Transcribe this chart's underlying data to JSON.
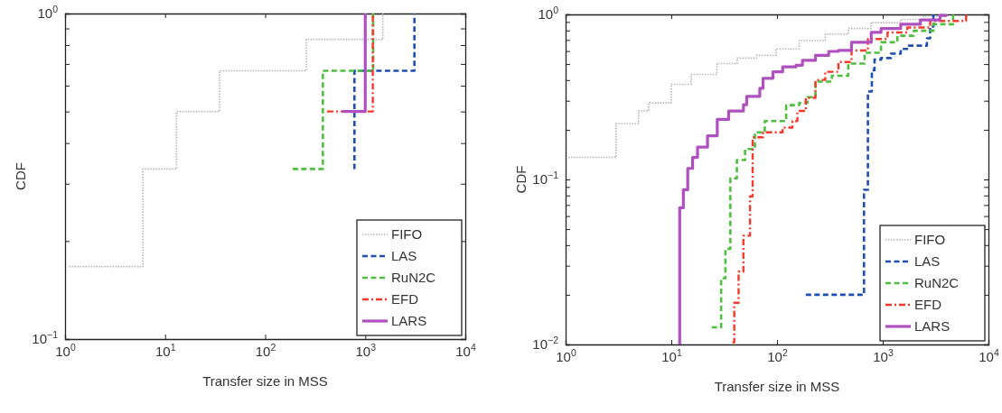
{
  "chart_data": [
    {
      "type": "step",
      "ylabel": "CDF",
      "xlabel": "Transfer size in MSS",
      "log": "xy",
      "legend": "bottom right",
      "grid": false,
      "xlim": [
        1,
        10000
      ],
      "ylim": [
        0.1,
        1
      ],
      "xticks": [
        {
          "value": 1,
          "label": "10$^{0}$"
        },
        {
          "value": 10,
          "label": "10$^{1}$"
        },
        {
          "value": 100,
          "label": "10$^{2}$"
        },
        {
          "value": 1000,
          "label": "10$^{3}$"
        },
        {
          "value": 10000,
          "label": "10$^{4}$"
        }
      ],
      "yticks": [
        {
          "value": 0.1,
          "label": "10$^{−1}$"
        },
        {
          "value": 0.2,
          "label": null
        },
        {
          "value": 0.3,
          "label": null
        },
        {
          "value": 0.4,
          "label": null
        },
        {
          "value": 0.5,
          "label": null
        },
        {
          "value": 0.6,
          "label": null
        },
        {
          "value": 0.7,
          "label": null
        },
        {
          "value": 0.8,
          "label": null
        },
        {
          "value": 0.9,
          "label": null
        },
        {
          "value": 1,
          "label": "10$^{0}$"
        }
      ],
      "series": [
        {
          "name": "FIFO",
          "color": "#b4b4b4",
          "line_style": "dotted",
          "x": [
            1.1,
            6,
            13,
            35,
            258,
            1500
          ],
          "values": [
            0.167,
            0.333,
            0.5,
            0.667,
            0.833,
            1.0
          ]
        },
        {
          "name": "LAS",
          "color": "#1f4fb0",
          "line_style": "dashed",
          "x": [
            780,
            780,
            3100
          ],
          "values": [
            0.333,
            0.667,
            1.0
          ]
        },
        {
          "name": "RuN2C",
          "color": "#4fbf3f",
          "line_style": "dashed",
          "x": [
            188,
            377,
            1200
          ],
          "values": [
            0.333,
            0.667,
            1.0
          ]
        },
        {
          "name": "EFD",
          "color": "#f8382a",
          "line_style": "dashdot",
          "x": [
            415,
            1190
          ],
          "values": [
            0.5,
            1.0
          ]
        },
        {
          "name": "LARS",
          "color": "#b050c0",
          "line_style": "solid",
          "x": [
            590,
            1000
          ],
          "values": [
            0.5,
            1.0
          ]
        }
      ]
    },
    {
      "type": "step",
      "ylabel": "CDF",
      "xlabel": "Transfer size in MSS",
      "log": "xy",
      "legend": "bottom right",
      "grid": false,
      "xlim": [
        1,
        10000
      ],
      "ylim": [
        0.01,
        1
      ],
      "xticks": [
        {
          "value": 1,
          "label": "10$^{0}$"
        },
        {
          "value": 10,
          "label": "10$^{1}$"
        },
        {
          "value": 100,
          "label": "10$^{2}$"
        },
        {
          "value": 1000,
          "label": "10$^{3}$"
        },
        {
          "value": 10000,
          "label": "10$^{4}$"
        }
      ],
      "yticks": [
        {
          "value": 0.01,
          "label": "10$^{−2}$"
        },
        {
          "value": 0.02,
          "label": null
        },
        {
          "value": 0.03,
          "label": null
        },
        {
          "value": 0.04,
          "label": null
        },
        {
          "value": 0.05,
          "label": null
        },
        {
          "value": 0.06,
          "label": null
        },
        {
          "value": 0.07,
          "label": null
        },
        {
          "value": 0.08,
          "label": null
        },
        {
          "value": 0.09,
          "label": null
        },
        {
          "value": 0.1,
          "label": "10$^{−1}$"
        },
        {
          "value": 0.2,
          "label": null
        },
        {
          "value": 0.3,
          "label": null
        },
        {
          "value": 0.4,
          "label": null
        },
        {
          "value": 0.5,
          "label": null
        },
        {
          "value": 0.6,
          "label": null
        },
        {
          "value": 0.7,
          "label": null
        },
        {
          "value": 0.8,
          "label": null
        },
        {
          "value": 0.9,
          "label": null
        },
        {
          "value": 1,
          "label": "10$^{0}$"
        }
      ],
      "series": [
        {
          "name": "FIFO",
          "color": "#b4b4b4",
          "line_style": "dotted",
          "x": [
            1.06,
            3.0,
            4.9,
            6.1,
            10,
            15.4,
            27,
            42,
            64,
            98,
            162,
            286,
            472,
            778,
            1480,
            2440,
            4000
          ],
          "values": [
            0.136,
            0.218,
            0.26,
            0.291,
            0.377,
            0.433,
            0.504,
            0.544,
            0.565,
            0.618,
            0.694,
            0.76,
            0.822,
            0.892,
            0.934,
            0.977,
            1.0
          ]
        },
        {
          "name": "LAS",
          "color": "#1f4fb0",
          "line_style": "dashed",
          "x": [
            187,
            665,
            724,
            789,
            836,
            964,
            1194,
            1480,
            1766,
            2617,
            2810,
            3015
          ],
          "values": [
            0.02,
            0.0866,
            0.341,
            0.459,
            0.532,
            0.544,
            0.578,
            0.618,
            0.647,
            0.716,
            0.845,
            1.0
          ]
        },
        {
          "name": "RuN2C",
          "color": "#4fbf3f",
          "line_style": "dashed",
          "x": [
            24.1,
            29.6,
            32.5,
            36.2,
            41.7,
            49.9,
            61.8,
            76.6,
            122,
            162,
            194,
            231,
            330,
            472,
            674,
            963,
            1376,
            1966,
            3015,
            4630
          ],
          "values": [
            0.0127,
            0.0252,
            0.038,
            0.1016,
            0.131,
            0.153,
            0.193,
            0.226,
            0.282,
            0.291,
            0.315,
            0.392,
            0.425,
            0.504,
            0.586,
            0.678,
            0.743,
            0.796,
            0.872,
            1.0
          ]
        },
        {
          "name": "EFD",
          "color": "#f8382a",
          "line_style": "dashdot",
          "x": [
            37.8,
            39.4,
            43.3,
            48.1,
            55.5,
            58.8,
            73.8,
            113,
            140,
            156,
            187,
            231,
            286,
            381,
            507,
            724,
            1110,
            1706,
            2810,
            6150
          ],
          "values": [
            0.0103,
            0.0179,
            0.0276,
            0.0456,
            0.079,
            0.18,
            0.193,
            0.206,
            0.226,
            0.26,
            0.312,
            0.401,
            0.449,
            0.515,
            0.605,
            0.71,
            0.778,
            0.833,
            0.912,
            1.0
          ]
        },
        {
          "name": "LARS",
          "color": "#b050c0",
          "line_style": "solid",
          "x": [
            12.0,
            12.0,
            13.0,
            14.3,
            15.9,
            17.7,
            22.0,
            27.2,
            34.9,
            48.1,
            51.7,
            68.7,
            73.8,
            91.5,
            113,
            151,
            174,
            231,
            308,
            381,
            507,
            778,
            964,
            1480,
            2270,
            3476,
            4000
          ],
          "values": [
            0.01,
            0.0673,
            0.0866,
            0.1167,
            0.136,
            0.157,
            0.184,
            0.231,
            0.26,
            0.284,
            0.319,
            0.357,
            0.41,
            0.449,
            0.481,
            0.492,
            0.527,
            0.565,
            0.597,
            0.605,
            0.678,
            0.778,
            0.822,
            0.872,
            0.925,
            0.986,
            1.0
          ]
        }
      ]
    }
  ]
}
